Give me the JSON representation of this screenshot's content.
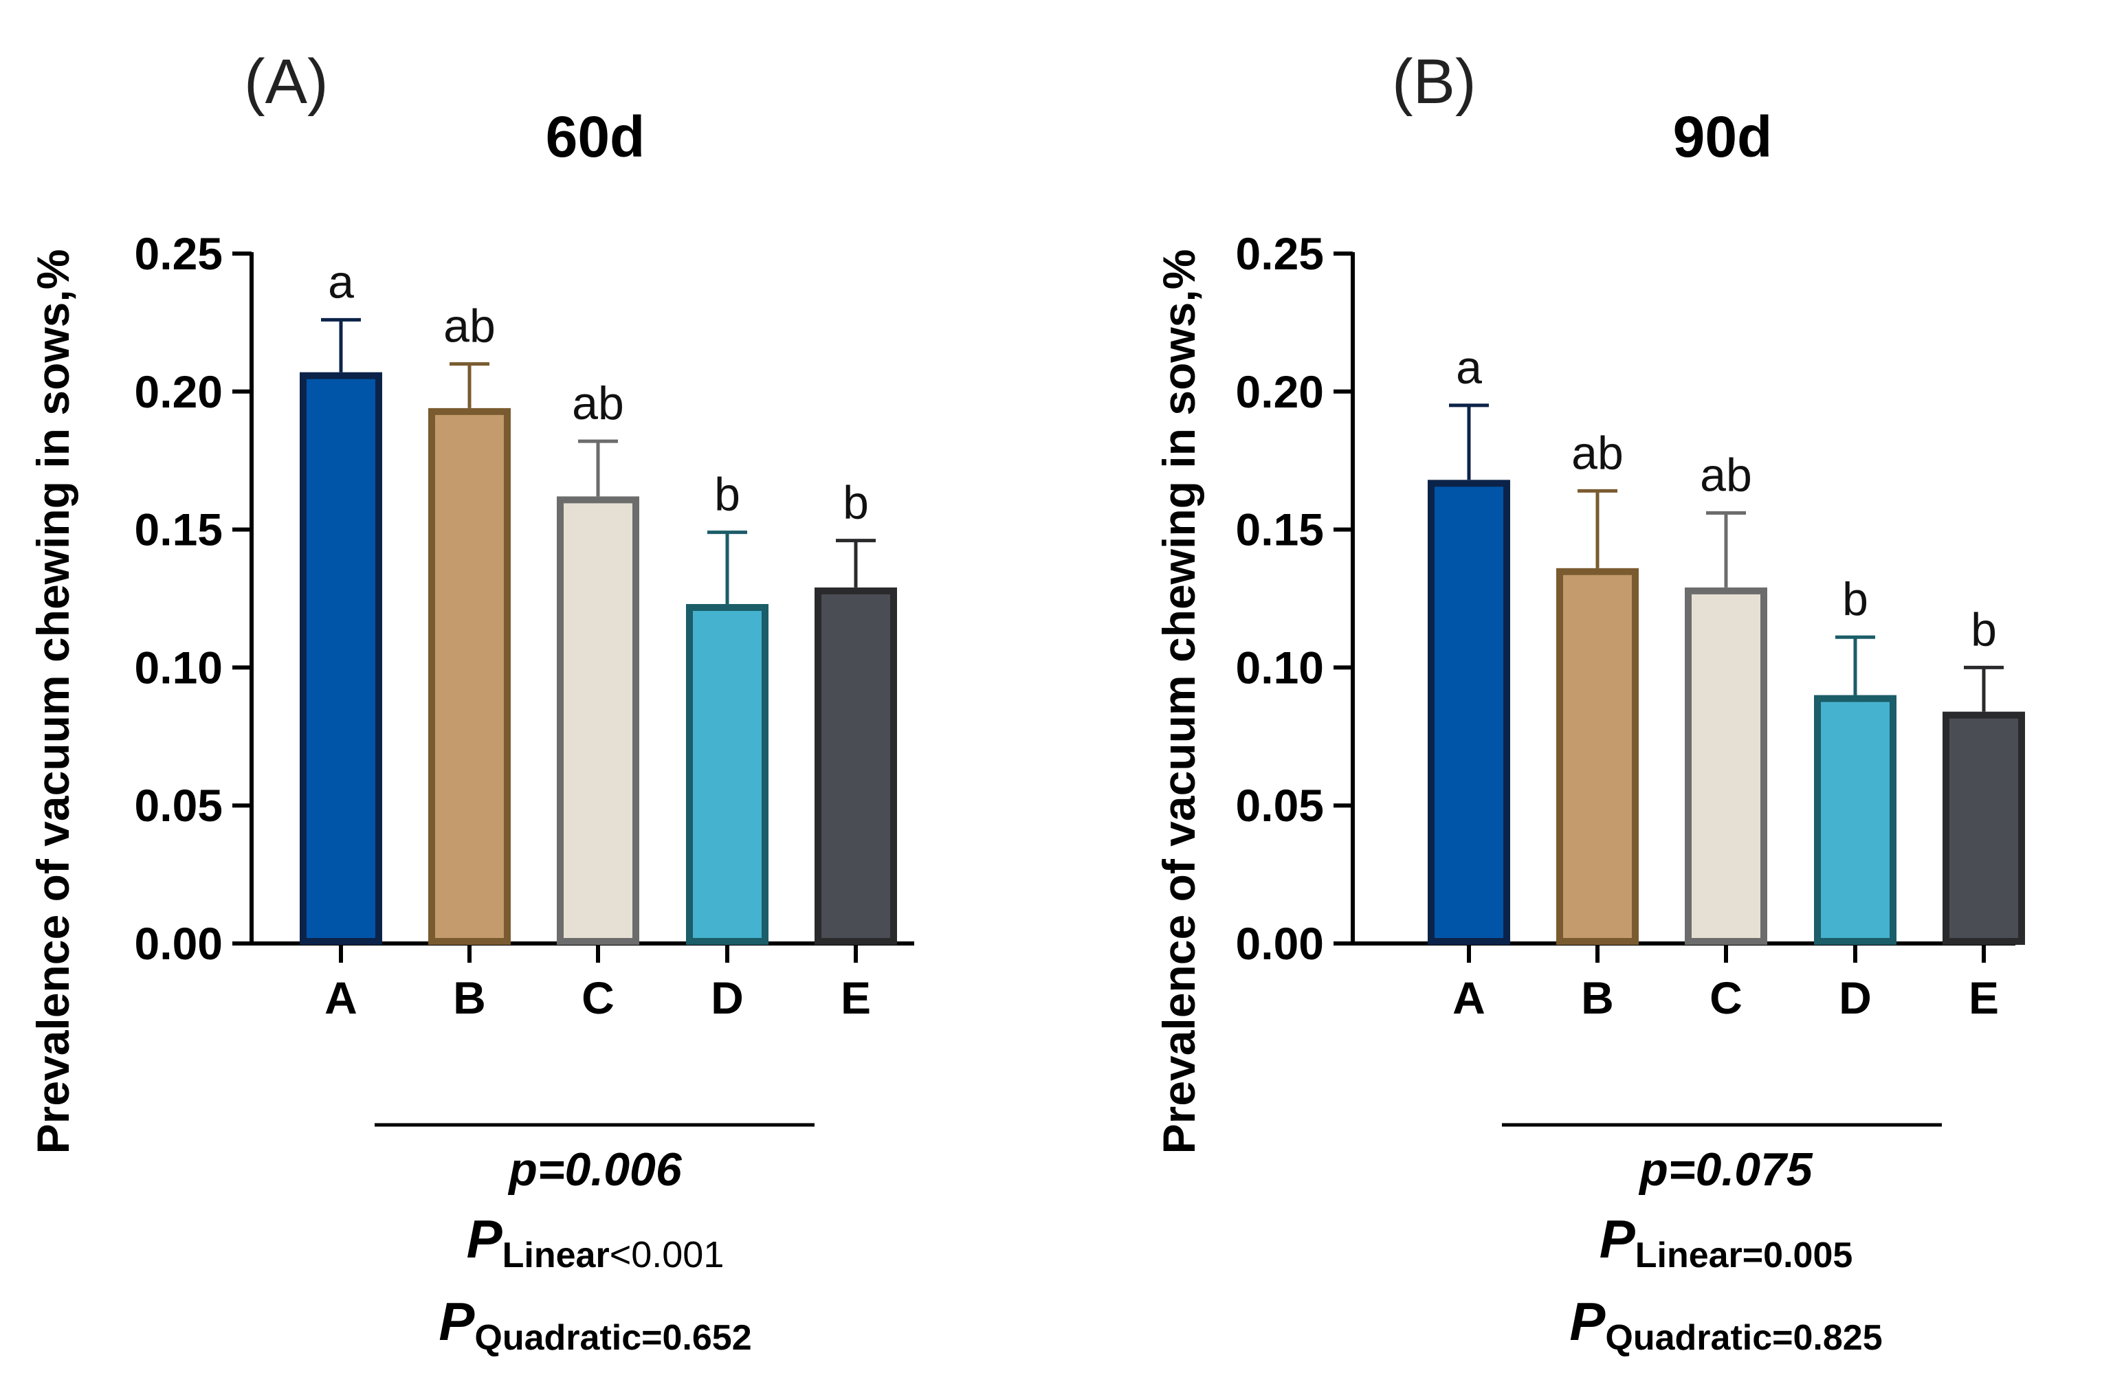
{
  "chart_data": [
    {
      "type": "bar",
      "panel_label": "(A)",
      "title": "60d",
      "ylabel": "Prevalence of vacuum chewing in sows,%",
      "xlabel": "",
      "ylim": [
        0,
        0.25
      ],
      "yticks": [
        "0.00",
        "0.05",
        "0.10",
        "0.15",
        "0.20",
        "0.25"
      ],
      "categories": [
        "A",
        "B",
        "C",
        "D",
        "E"
      ],
      "values": [
        0.207,
        0.194,
        0.162,
        0.123,
        0.129
      ],
      "errors": [
        0.019,
        0.016,
        0.02,
        0.026,
        0.017
      ],
      "letters": [
        "a",
        "ab",
        "ab",
        "b",
        "b"
      ],
      "fills": [
        "#0055A8",
        "#C39B6C",
        "#E6E0D4",
        "#45B2CF",
        "#4B4D55"
      ],
      "strokes": [
        "#0C2349",
        "#7A5B30",
        "#6C6C6C",
        "#1B5D68",
        "#2A2A2C"
      ],
      "stats": {
        "p_text": "p=0.006",
        "linear_P": "P",
        "linear_sub": "Linear",
        "linear_value": "<0.001",
        "quad_P": "P",
        "quad_sub": "Quadratic=0.652"
      }
    },
    {
      "type": "bar",
      "panel_label": "(B)",
      "title": "90d",
      "ylabel": "Prevalence of vacuum chewing in sows,%",
      "xlabel": "",
      "ylim": [
        0,
        0.25
      ],
      "yticks": [
        "0.00",
        "0.05",
        "0.10",
        "0.15",
        "0.20",
        "0.25"
      ],
      "categories": [
        "A",
        "B",
        "C",
        "D",
        "E"
      ],
      "values": [
        0.168,
        0.136,
        0.129,
        0.09,
        0.084
      ],
      "errors": [
        0.027,
        0.028,
        0.027,
        0.021,
        0.016
      ],
      "letters": [
        "a",
        "ab",
        "ab",
        "b",
        "b"
      ],
      "fills": [
        "#0055A8",
        "#C39B6C",
        "#E6E0D4",
        "#45B2CF",
        "#4B4D55"
      ],
      "strokes": [
        "#0C2349",
        "#7A5B30",
        "#6C6C6C",
        "#1B5D68",
        "#2A2A2C"
      ],
      "stats": {
        "p_text": "p=0.075",
        "linear_P": "P",
        "linear_sub": "Linear=0.005",
        "linear_value": "",
        "quad_P": "P",
        "quad_sub": "Quadratic=0.825"
      }
    }
  ]
}
